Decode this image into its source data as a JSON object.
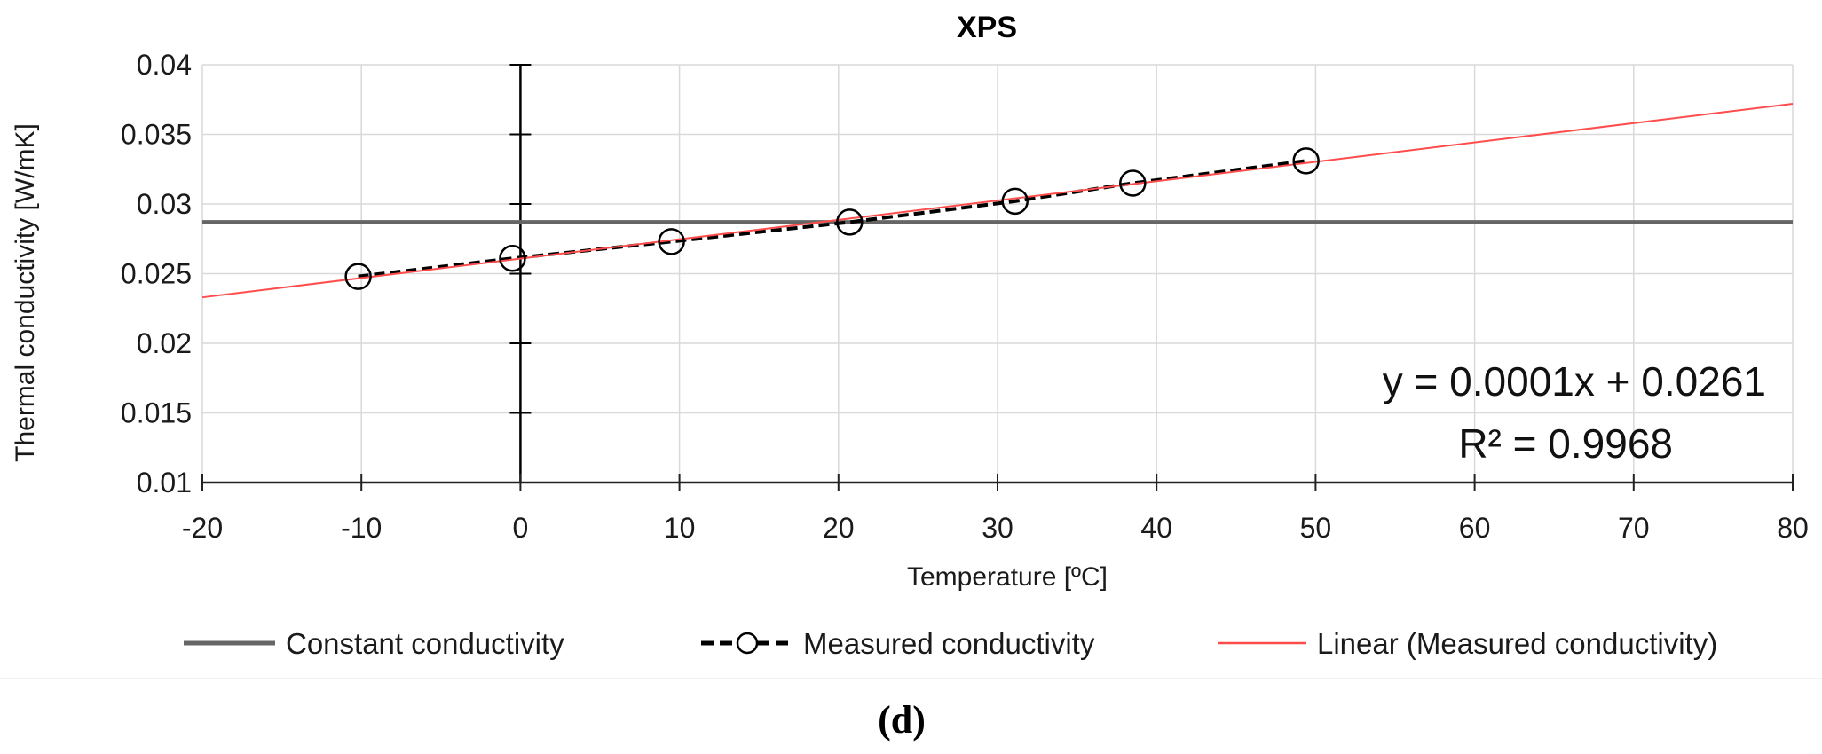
{
  "chart_data": {
    "type": "line",
    "title": "XPS",
    "xlabel": "Temperature [ºC]",
    "ylabel": "Thermal conductivity [W/mK]",
    "xlim": [
      -20,
      80
    ],
    "ylim": [
      0.01,
      0.04
    ],
    "xticks": [
      "-20",
      "-10",
      "0",
      "10",
      "20",
      "30",
      "40",
      "50",
      "60",
      "70",
      "80"
    ],
    "yticks": [
      "0.01",
      "0.015",
      "0.02",
      "0.025",
      "0.03",
      "0.035",
      "0.04"
    ],
    "grid": true,
    "legend_position": "bottom",
    "series": [
      {
        "name": "Constant conductivity",
        "color": "#666666",
        "style": "solid",
        "x": [
          -20,
          80
        ],
        "y": [
          0.0287,
          0.0287
        ]
      },
      {
        "name": "Measured conductivity",
        "color": "#000000",
        "style": "dashed",
        "marker": "open-circle",
        "x": [
          -10.2,
          -0.5,
          9.5,
          20.7,
          31.1,
          38.5,
          49.4
        ],
        "y": [
          0.0248,
          0.0261,
          0.0273,
          0.0287,
          0.0302,
          0.0315,
          0.0331
        ]
      },
      {
        "name": "Linear (Measured conductivity)",
        "color": "#ff4d4d",
        "style": "solid",
        "x": [
          -20,
          80
        ],
        "y": [
          0.0233,
          0.0372
        ]
      }
    ],
    "error_bar": {
      "x": 0,
      "y_min": 0.01,
      "y_max": 0.04,
      "caps": [
        0.015,
        0.02,
        0.025,
        0.03,
        0.035,
        0.04
      ]
    },
    "annotation": {
      "equation": "y = 0.0001x + 0.0261",
      "r_squared": "R² = 0.9968"
    }
  },
  "caption": "(d)"
}
